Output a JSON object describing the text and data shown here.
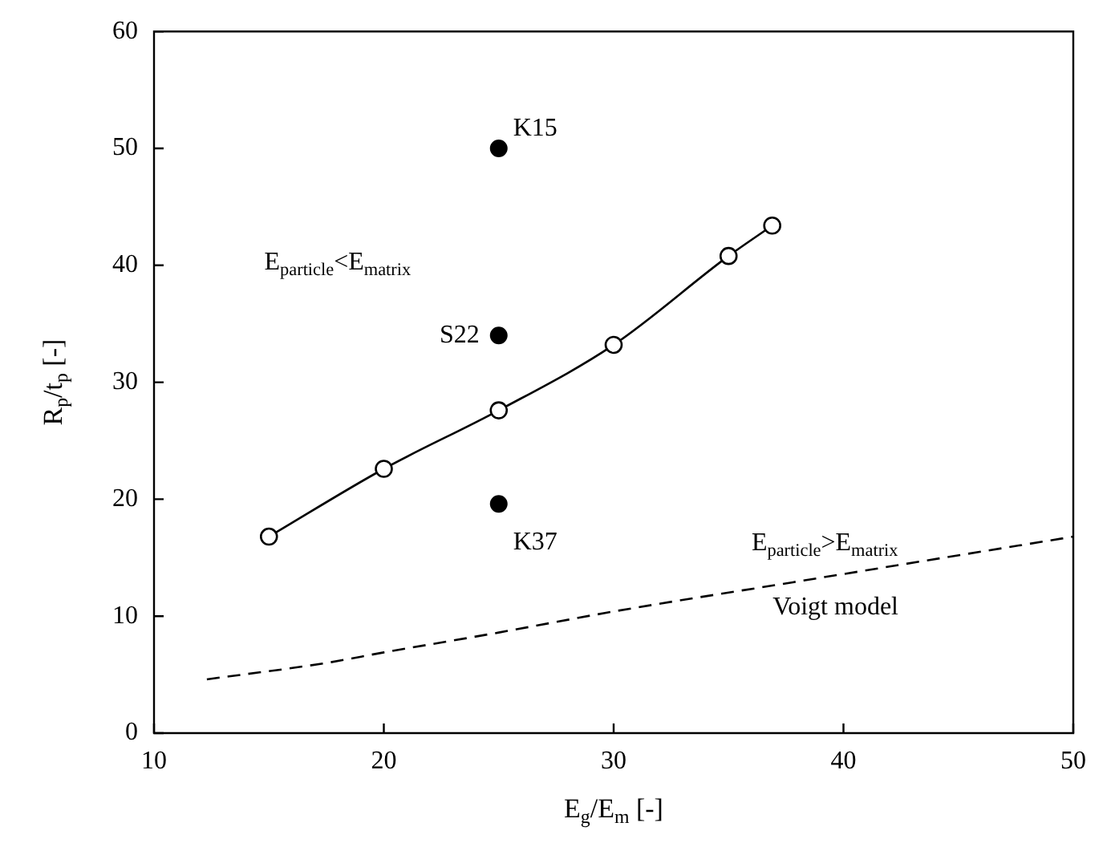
{
  "chart_data": {
    "type": "line",
    "xlabel": "E$_{g}$/E$_{m}$ [-]",
    "ylabel": "R$_{p}$/t$_{p}$ [-]",
    "xlim": [
      10,
      50
    ],
    "xticks": [
      10,
      20,
      30,
      40,
      50
    ],
    "ylim": [
      0,
      60
    ],
    "yticks": [
      0,
      10,
      20,
      30,
      40,
      50,
      60
    ],
    "grid": false,
    "legend": false,
    "series": [
      {
        "type": "line",
        "x": [
          15,
          20,
          25,
          30,
          35,
          36.9
        ],
        "values": [
          16.8,
          22.6,
          27.6,
          33.2,
          40.8,
          43.4
        ],
        "color": "#000000",
        "marker": "circle",
        "line_style": "solid"
      },
      {
        "type": "scatter",
        "x": [
          25,
          25,
          25
        ],
        "values": [
          50,
          34,
          19.6
        ],
        "color": "#000000",
        "marker": "circle"
      },
      {
        "type": "line",
        "name": "Voigt model",
        "x": [
          12.3,
          17.5,
          20,
          25,
          30,
          37.8,
          50
        ],
        "values": [
          4.6,
          6,
          6.9,
          8.6,
          10.4,
          12.9,
          16.8
        ],
        "color": "#000000",
        "marker": "none",
        "line_style": "dashed"
      }
    ],
    "annotations": [
      "K15",
      "S22",
      "K37",
      "E$_{particle}$<E$_{matrix}$",
      "E$_{particle}$>E$_{matrix}$"
    ]
  }
}
